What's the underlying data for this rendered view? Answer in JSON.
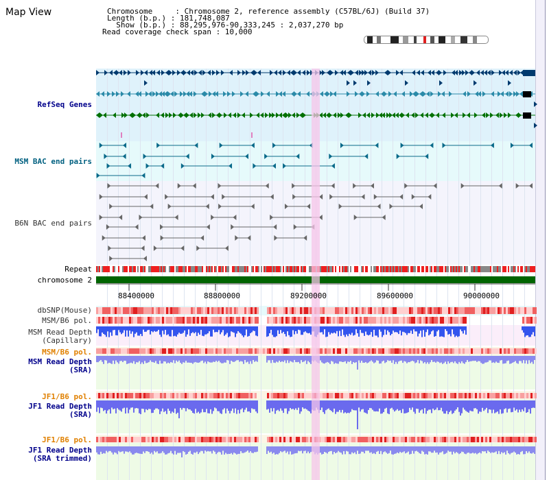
{
  "page": {
    "title": "Map View"
  },
  "info": {
    "chromosome": "Chromosome     : Chromosome 2, reference assembly (C57BL/6J) (Build 37)",
    "length": "Length (b.p.) : 181,748,087",
    "show": "  Show (b.p.) : 88,295,976-90,333,245 : 2,037,270 bp",
    "span": "Read coverage check span : 10,000"
  },
  "tracks": {
    "refseq": "RefSeq Genes",
    "msm_bac": "MSM BAC end pairs",
    "b6n_bac": "B6N BAC end pairs",
    "repeat": "Repeat",
    "chromosome": "chromosome 2",
    "dbsnp": "dbSNP(Mouse)",
    "msm_b6_pol": "MSM/B6 pol.",
    "msm_depth_cap_1": "MSM Read Depth",
    "msm_depth_cap_2": "(Capillary)",
    "msm_b6_pol_2": "MSM/B6 pol.",
    "msm_depth_sra_1": "MSM Read Depth",
    "msm_depth_sra_2": "(SRA)",
    "jf1_b6_pol": "JF1/B6 pol.",
    "jf1_depth_sra_1": "JF1 Read Depth",
    "jf1_depth_sra_2": "(SRA)",
    "jf1_b6_pol_2": "JF1/B6 pol.",
    "jf1_depth_trim_1": "JF1 Read Depth",
    "jf1_depth_trim_2": "(SRA trimmed)"
  },
  "axis": {
    "ticks": [
      "88400000",
      "88800000",
      "89200000",
      "89600000",
      "90000000"
    ]
  },
  "colors": {
    "refseq_label": "#00008b",
    "msm_label": "#006080",
    "orange_label": "#e08000",
    "blue_label": "#00008b",
    "gene_dark": "#003a6e",
    "gene_mid": "#2a8aa8",
    "gene_green": "#007000",
    "chrom_band": "#006400",
    "repeat_red": "#ee2020",
    "depth_blue": "#4444ee"
  }
}
